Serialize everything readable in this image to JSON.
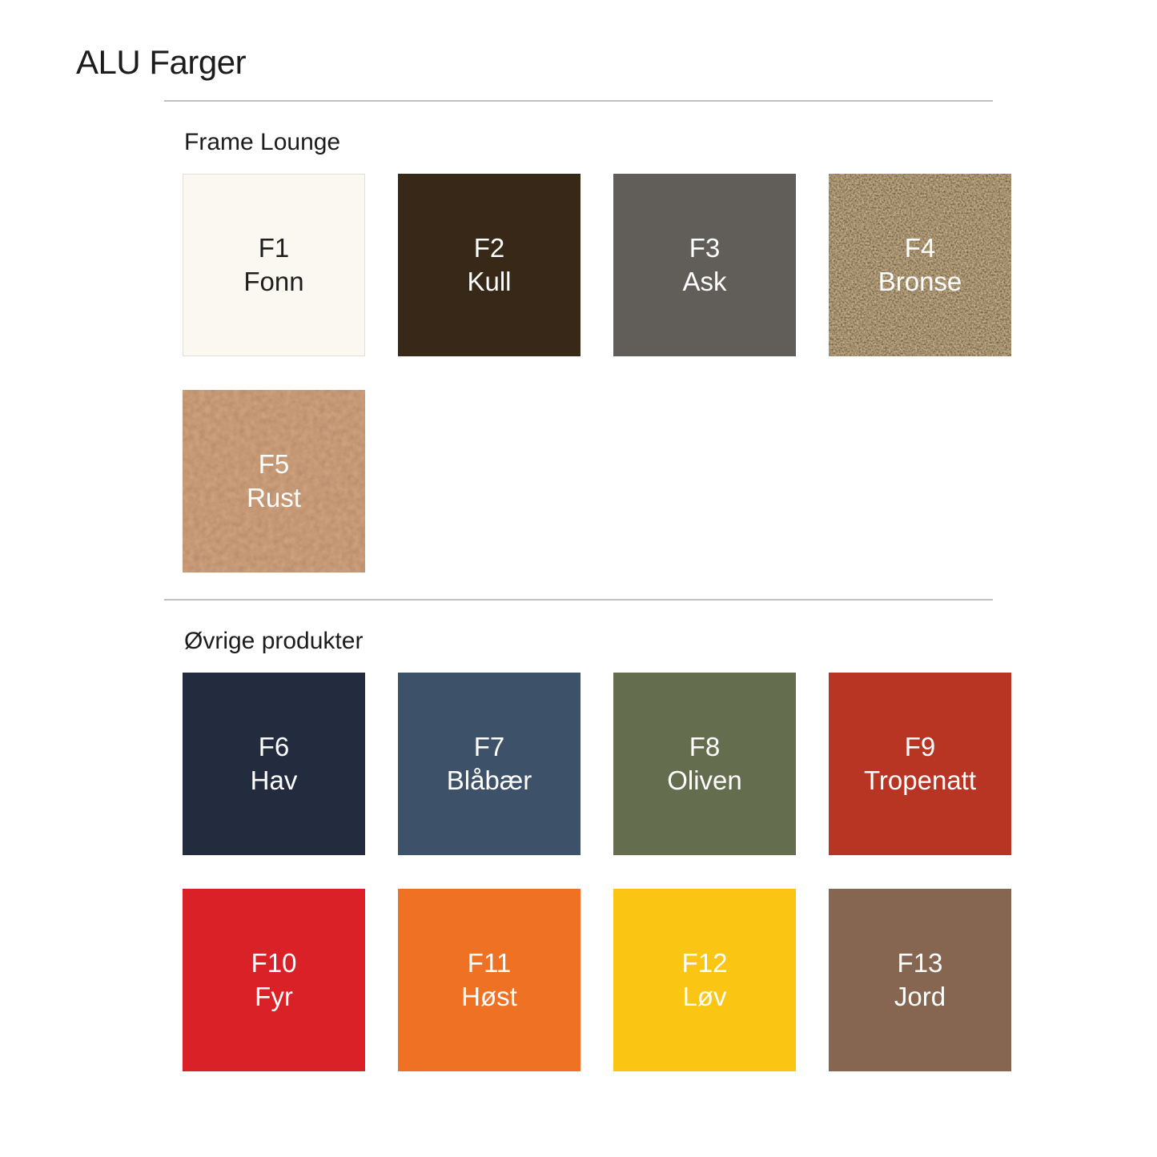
{
  "page": {
    "title": "ALU Farger",
    "background": "#FFFFFF"
  },
  "sections": [
    {
      "heading": "Frame Lounge",
      "swatches": [
        {
          "code": "F1",
          "name": "Fonn",
          "color": "#FAF8F1",
          "text_color": "#1E1E1E",
          "border_color": "#E3E1D8",
          "texture": "none"
        },
        {
          "code": "F2",
          "name": "Kull",
          "color": "#372818",
          "text_color": "#FFFFFF",
          "texture": "none"
        },
        {
          "code": "F3",
          "name": "Ask",
          "color": "#615E59",
          "text_color": "#FFFFFF",
          "texture": "none"
        },
        {
          "code": "F4",
          "name": "Bronse",
          "color": "#44300F",
          "text_color": "#FFFFFF",
          "texture": "bronze-speckle"
        },
        {
          "code": "F5",
          "name": "Rust",
          "color": "#8B4D2B",
          "text_color": "#FFFFFF",
          "texture": "rust-fabric"
        }
      ]
    },
    {
      "heading": "Øvrige produkter",
      "swatches": [
        {
          "code": "F6",
          "name": "Hav",
          "color": "#232C3E",
          "text_color": "#FFFFFF",
          "texture": "none"
        },
        {
          "code": "F7",
          "name": "Blåbær",
          "color": "#3D5168",
          "text_color": "#FFFFFF",
          "texture": "none"
        },
        {
          "code": "F8",
          "name": "Oliven",
          "color": "#646D4E",
          "text_color": "#FFFFFF",
          "texture": "none"
        },
        {
          "code": "F9",
          "name": "Tropenatt",
          "color": "#B83524",
          "text_color": "#FFFFFF",
          "texture": "none"
        },
        {
          "code": "F10",
          "name": "Fyr",
          "color": "#DA2128",
          "text_color": "#FFFFFF",
          "texture": "none"
        },
        {
          "code": "F11",
          "name": "Høst",
          "color": "#EF7124",
          "text_color": "#FFFFFF",
          "texture": "none"
        },
        {
          "code": "F12",
          "name": "Løv",
          "color": "#FAC613",
          "text_color": "#FFFFFF",
          "texture": "none"
        },
        {
          "code": "F13",
          "name": "Jord",
          "color": "#876651",
          "text_color": "#FFFFFF",
          "texture": "none"
        }
      ]
    }
  ]
}
